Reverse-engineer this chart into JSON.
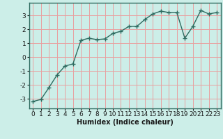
{
  "x": [
    0,
    1,
    2,
    3,
    4,
    5,
    6,
    7,
    8,
    9,
    10,
    11,
    12,
    13,
    14,
    15,
    16,
    17,
    18,
    19,
    20,
    21,
    22,
    23
  ],
  "y": [
    -3.2,
    -3.05,
    -2.2,
    -1.3,
    -0.65,
    -0.5,
    1.2,
    1.35,
    1.25,
    1.3,
    1.7,
    1.85,
    2.2,
    2.2,
    2.7,
    3.1,
    3.3,
    3.2,
    3.2,
    1.35,
    2.2,
    3.35,
    3.1,
    3.2
  ],
  "line_color": "#2e6b60",
  "marker": "+",
  "markersize": 4,
  "linewidth": 1.0,
  "bg_color": "#cceee8",
  "grid_color": "#e8a0a0",
  "xlabel": "Humidex (Indice chaleur)",
  "xlabel_fontsize": 7,
  "tick_fontsize": 6.5,
  "yticks": [
    -3,
    -2,
    -1,
    0,
    1,
    2,
    3
  ],
  "xticks": [
    0,
    1,
    2,
    3,
    4,
    5,
    6,
    7,
    8,
    9,
    10,
    11,
    12,
    13,
    14,
    15,
    16,
    17,
    18,
    19,
    20,
    21,
    22,
    23
  ],
  "ylim": [
    -3.7,
    3.9
  ],
  "xlim": [
    -0.5,
    23.5
  ]
}
